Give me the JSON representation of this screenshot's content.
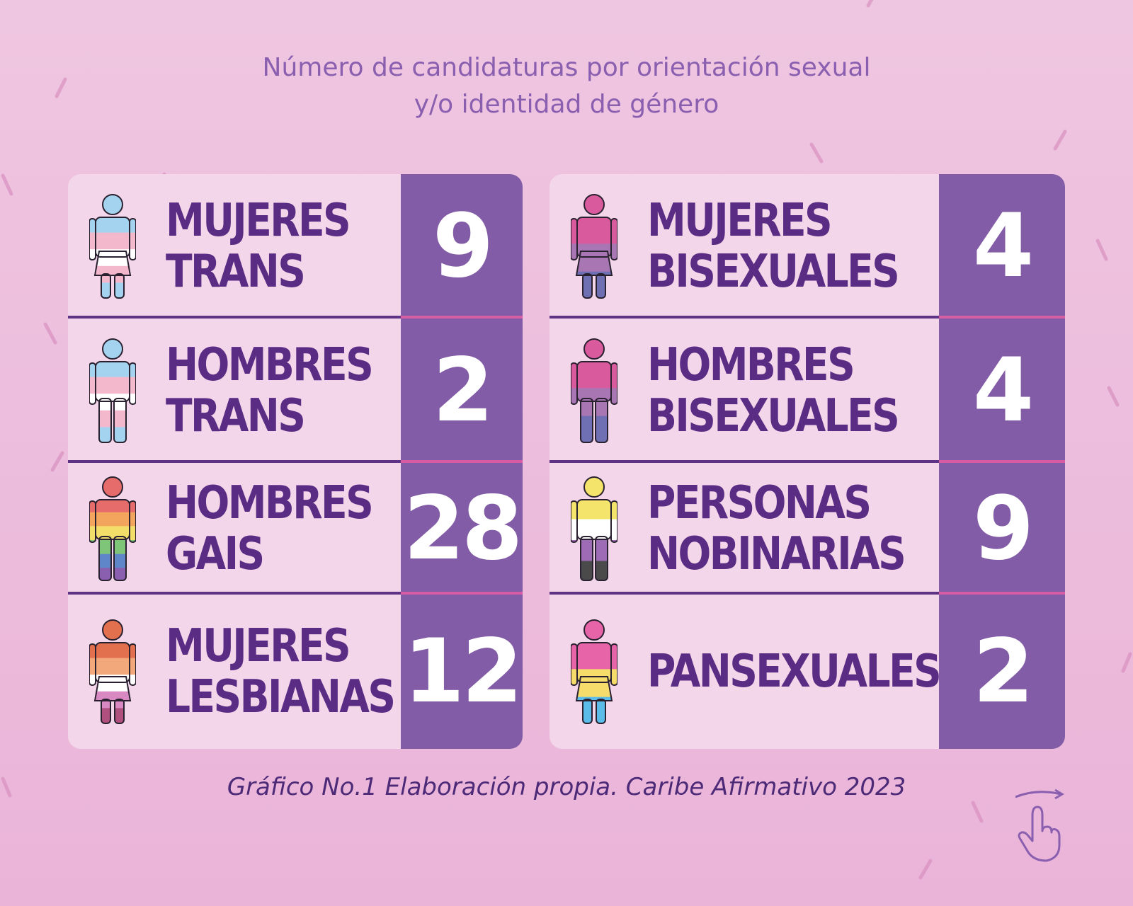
{
  "title_line1": "Número de candidaturas por orientación sexual",
  "title_line2": "y/o identidad de género",
  "caption": "Gráfico No.1 Elaboración propia. Caribe Afirmativo 2023",
  "swipe_icon": "swipe-hand-icon",
  "colors": {
    "background": "#efc6e1",
    "panel": "#f3d6ea",
    "number_column": "#825ca6",
    "label_text": "#5b2c84",
    "title_text": "#8a5fb0"
  },
  "chart_data": {
    "type": "table",
    "title": "Número de candidaturas por orientación sexual y/o identidad de género",
    "columns": [
      [
        {
          "line1": "MUJERES",
          "line2": "TRANS",
          "value": 9,
          "figure": "woman-icon",
          "flag": [
            "#a3d3ef",
            "#f4b8cd",
            "#ffffff",
            "#f4b8cd",
            "#a3d3ef"
          ]
        },
        {
          "line1": "HOMBRES",
          "line2": "TRANS",
          "value": 2,
          "figure": "man-icon",
          "flag": [
            "#a3d3ef",
            "#f4b8cd",
            "#ffffff",
            "#f4b8cd",
            "#a3d3ef"
          ]
        },
        {
          "line1": "HOMBRES",
          "line2": "GAIS",
          "value": 28,
          "figure": "man-icon",
          "flag": [
            "#e66b6b",
            "#f3a55e",
            "#f4de6a",
            "#7ec57a",
            "#5e86c9",
            "#8a5fb0"
          ]
        },
        {
          "line1": "MUJERES",
          "line2": "LESBIANAS",
          "value": 12,
          "figure": "woman-icon",
          "flag": [
            "#e2704f",
            "#f2a87a",
            "#ffffff",
            "#d889c2",
            "#b0507f"
          ]
        }
      ],
      [
        {
          "line1": "MUJERES",
          "line2": "BISEXUALES",
          "value": 4,
          "figure": "woman-icon",
          "flag": [
            "#da5a9e",
            "#a876b3",
            "#6f6fb3"
          ]
        },
        {
          "line1": "HOMBRES",
          "line2": "BISEXUALES",
          "value": 4,
          "figure": "man-icon",
          "flag": [
            "#da5a9e",
            "#a876b3",
            "#6f6fb3"
          ]
        },
        {
          "line1": "PERSONAS",
          "line2": "NOBINARIAS",
          "value": 9,
          "figure": "person-icon",
          "flag": [
            "#f5e46b",
            "#ffffff",
            "#9e6bb7",
            "#4a4a4a"
          ]
        },
        {
          "line1": "PANSEXUALES",
          "line2": "",
          "value": 2,
          "figure": "woman-icon",
          "flag": [
            "#e864a8",
            "#f6dc6a",
            "#5bbbe9"
          ]
        }
      ]
    ]
  }
}
